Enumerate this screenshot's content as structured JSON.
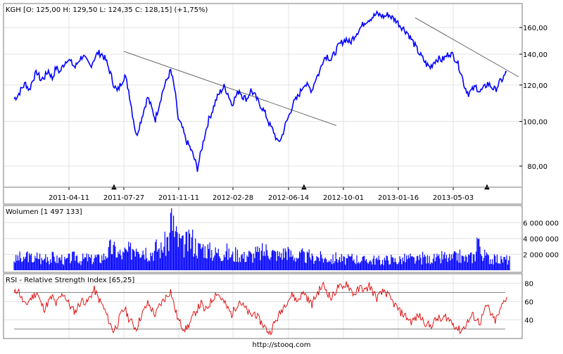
{
  "footer": {
    "url": "http://stooq.com"
  },
  "chart_data": [
    {
      "type": "line",
      "panel": "price",
      "title": "KGH [O: 125,00  H: 129,50  L: 124,35  C: 128,15] (+1,75%)",
      "x_tick_labels": [
        "2011-04-11",
        "2011-07-27",
        "2011-11-11",
        "2012-02-28",
        "2012-06-14",
        "2012-10-01",
        "2013-01-16",
        "2013-05-03"
      ],
      "y_tick_labels": [
        "80,00",
        "100,00",
        "120,00",
        "140,00",
        "160,00"
      ],
      "y_ticks": [
        80,
        100,
        120,
        140,
        160
      ],
      "ylim": [
        73,
        176
      ],
      "scale": "log",
      "grid": true,
      "color": "#0000ff",
      "series": [
        {
          "values": [
            112,
            114,
            118,
            121,
            117,
            124,
            128,
            123,
            125,
            129,
            124,
            131,
            128,
            133,
            137,
            134,
            131,
            136,
            139,
            135,
            132,
            137,
            141,
            140,
            136,
            129,
            121,
            116,
            121,
            126,
            117,
            104,
            93,
            99,
            106,
            113,
            107,
            101,
            109,
            117,
            123,
            129,
            118,
            101,
            97,
            91,
            88,
            84,
            79,
            86,
            94,
            101,
            106,
            112,
            116,
            119,
            115,
            109,
            113,
            117,
            113,
            112,
            117,
            114,
            110,
            107,
            103,
            98,
            95,
            90,
            92,
            98,
            103,
            109,
            112,
            116,
            121,
            119,
            117,
            124,
            128,
            137,
            139,
            136,
            141,
            146,
            149,
            151,
            148,
            153,
            157,
            161,
            165,
            167,
            169,
            171,
            170,
            169,
            171,
            168,
            166,
            162,
            159,
            156,
            151,
            146,
            141,
            137,
            133,
            131,
            135,
            137,
            136,
            138,
            141,
            139,
            135,
            128,
            119,
            115,
            117,
            119,
            116,
            118,
            121,
            119,
            117,
            121,
            124,
            128
          ]
        }
      ],
      "trendlines": [
        {
          "from": [
            "2011-07-27",
            142
          ],
          "to": [
            "2012-09-07",
            98
          ]
        },
        {
          "from": [
            "2013-01-25",
            168
          ],
          "to": [
            "2013-08-31",
            125
          ]
        }
      ],
      "markers": [
        "▲",
        "▲",
        "▲"
      ]
    },
    {
      "type": "bar",
      "panel": "volume",
      "title": "Wolumen [1 497 133]",
      "y_tick_labels": [
        "2 000 000",
        "4 000 000",
        "6 000 000"
      ],
      "y_ticks": [
        2000000,
        4000000,
        6000000
      ],
      "ylim": [
        0,
        7800000
      ],
      "grid": true,
      "color": "#0000ff",
      "series": [
        {
          "values": [
            1500000,
            1800000,
            1300000,
            2200000,
            1700000,
            1500000,
            1900000,
            1400000,
            2100000,
            1600000,
            1800000,
            1500000,
            1700000,
            1300000,
            1600000,
            1800000,
            2000000,
            1400000,
            1600000,
            1700000,
            1500000,
            1800000,
            1600000,
            1900000,
            2400000,
            3000000,
            2800000,
            2300000,
            2100000,
            2500000,
            2700000,
            3300000,
            3800000,
            3000000,
            2800000,
            2400000,
            2600000,
            3100000,
            2900000,
            3600000,
            4300000,
            7000000,
            4600000,
            3900000,
            3400000,
            3800000,
            4200000,
            3600000,
            3000000,
            3300000,
            2900000,
            2700000,
            2400000,
            2500000,
            2300000,
            2600000,
            2200000,
            2000000,
            2300000,
            2100000,
            1900000,
            2200000,
            2000000,
            2400000,
            2300000,
            2600000,
            2800000,
            2500000,
            2300000,
            2100000,
            2400000,
            2700000,
            2200000,
            2000000,
            1900000,
            2100000,
            1800000,
            2000000,
            1700000,
            1900000,
            1800000,
            1600000,
            1700000,
            1500000,
            1800000,
            1600000,
            1400000,
            1500000,
            1700000,
            1600000,
            1500000,
            1400000,
            1600000,
            1300000,
            1500000,
            1400000,
            1300000,
            1500000,
            1600000,
            1400000,
            1300000,
            1500000,
            1600000,
            1700000,
            1500000,
            1400000,
            1600000,
            1800000,
            1500000,
            1700000,
            1600000,
            1500000,
            1900000,
            1700000,
            1600000,
            1800000,
            2000000,
            1700000,
            1600000,
            1800000,
            1900000,
            4500000,
            2500000,
            2000000,
            1700000,
            1500000,
            1600000,
            1400000,
            1500000,
            1500000
          ]
        }
      ]
    },
    {
      "type": "line",
      "panel": "rsi",
      "title": "RSI - Relative Strength Index [65,25]",
      "y_tick_labels": [
        "40",
        "60",
        "80"
      ],
      "y_ticks": [
        40,
        60,
        80
      ],
      "ylim": [
        22,
        88
      ],
      "reference_lines": [
        30,
        70
      ],
      "grid": true,
      "color": "#dd0000",
      "series": [
        {
          "values": [
            68,
            74,
            63,
            55,
            62,
            66,
            70,
            58,
            52,
            60,
            65,
            57,
            64,
            69,
            60,
            53,
            49,
            57,
            62,
            58,
            66,
            73,
            64,
            57,
            48,
            37,
            28,
            35,
            46,
            53,
            42,
            36,
            30,
            42,
            50,
            58,
            52,
            45,
            55,
            61,
            66,
            72,
            54,
            40,
            33,
            30,
            36,
            45,
            52,
            58,
            49,
            56,
            63,
            70,
            65,
            59,
            52,
            46,
            54,
            61,
            55,
            50,
            44,
            48,
            41,
            36,
            30,
            26,
            35,
            42,
            50,
            58,
            63,
            68,
            60,
            66,
            70,
            62,
            57,
            66,
            73,
            78,
            71,
            63,
            70,
            77,
            73,
            81,
            74,
            68,
            72,
            76,
            71,
            78,
            70,
            64,
            68,
            72,
            66,
            60,
            55,
            49,
            46,
            42,
            38,
            41,
            45,
            40,
            36,
            33,
            38,
            42,
            39,
            44,
            40,
            36,
            31,
            28,
            33,
            39,
            45,
            41,
            37,
            48,
            56,
            44,
            39,
            47,
            58,
            65
          ]
        }
      ]
    }
  ]
}
